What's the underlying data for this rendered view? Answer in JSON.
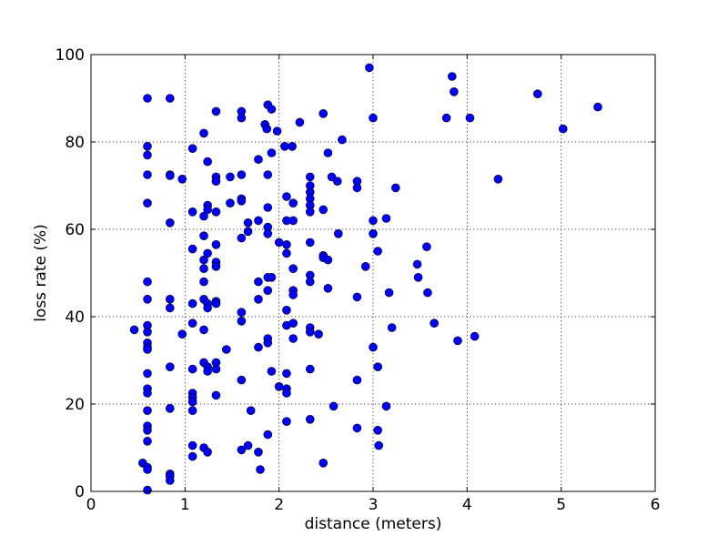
{
  "chart_data": {
    "type": "scatter",
    "title": "",
    "xlabel": "distance (meters)",
    "ylabel": "loss rate (%)",
    "xlim": [
      0,
      6
    ],
    "ylim": [
      0,
      100
    ],
    "xticks": [
      "0",
      "1",
      "2",
      "3",
      "4",
      "5",
      "6"
    ],
    "yticks": [
      "0",
      "20",
      "40",
      "60",
      "80",
      "100"
    ],
    "grid": true,
    "marker_color": "#0000ff",
    "marker_edge_color": "#000000",
    "points": [
      [
        0.46,
        37
      ],
      [
        0.55,
        6.5
      ],
      [
        0.6,
        90
      ],
      [
        0.6,
        79
      ],
      [
        0.6,
        77
      ],
      [
        0.6,
        72.5
      ],
      [
        0.6,
        66
      ],
      [
        0.6,
        48
      ],
      [
        0.6,
        44
      ],
      [
        0.6,
        38
      ],
      [
        0.6,
        36.5
      ],
      [
        0.6,
        34
      ],
      [
        0.6,
        33
      ],
      [
        0.6,
        32.5
      ],
      [
        0.6,
        27
      ],
      [
        0.6,
        23.5
      ],
      [
        0.6,
        22.5
      ],
      [
        0.6,
        18.5
      ],
      [
        0.6,
        15
      ],
      [
        0.6,
        14
      ],
      [
        0.6,
        11.5
      ],
      [
        0.6,
        5.5
      ],
      [
        0.6,
        5
      ],
      [
        0.6,
        0.3
      ],
      [
        0.84,
        90
      ],
      [
        0.84,
        72.5
      ],
      [
        0.84,
        72.3
      ],
      [
        0.84,
        61.5
      ],
      [
        0.84,
        44
      ],
      [
        0.84,
        42
      ],
      [
        0.84,
        28.5
      ],
      [
        0.84,
        19
      ],
      [
        0.84,
        4
      ],
      [
        0.84,
        3.5
      ],
      [
        0.84,
        2.5
      ],
      [
        0.97,
        71.5
      ],
      [
        0.97,
        36
      ],
      [
        1.08,
        78.5
      ],
      [
        1.08,
        64
      ],
      [
        1.08,
        55.5
      ],
      [
        1.08,
        43
      ],
      [
        1.08,
        38.5
      ],
      [
        1.08,
        28
      ],
      [
        1.08,
        22.5
      ],
      [
        1.08,
        21.5
      ],
      [
        1.08,
        20.5
      ],
      [
        1.08,
        18.5
      ],
      [
        1.08,
        10.5
      ],
      [
        1.08,
        8
      ],
      [
        1.2,
        82
      ],
      [
        1.2,
        63
      ],
      [
        1.2,
        58.5
      ],
      [
        1.2,
        53
      ],
      [
        1.2,
        51
      ],
      [
        1.2,
        48
      ],
      [
        1.2,
        44
      ],
      [
        1.2,
        37
      ],
      [
        1.2,
        29.5
      ],
      [
        1.2,
        10
      ],
      [
        1.24,
        75.5
      ],
      [
        1.24,
        65.5
      ],
      [
        1.24,
        64.5
      ],
      [
        1.24,
        54.5
      ],
      [
        1.24,
        43
      ],
      [
        1.24,
        42
      ],
      [
        1.24,
        28.5
      ],
      [
        1.24,
        27.5
      ],
      [
        1.24,
        9
      ],
      [
        1.33,
        87
      ],
      [
        1.33,
        72
      ],
      [
        1.33,
        71
      ],
      [
        1.33,
        64
      ],
      [
        1.33,
        56.5
      ],
      [
        1.33,
        52.5
      ],
      [
        1.33,
        51.5
      ],
      [
        1.33,
        43.5
      ],
      [
        1.33,
        43
      ],
      [
        1.33,
        29.5
      ],
      [
        1.33,
        28
      ],
      [
        1.33,
        22
      ],
      [
        1.44,
        32.5
      ],
      [
        1.48,
        66
      ],
      [
        1.48,
        72
      ],
      [
        1.6,
        87
      ],
      [
        1.6,
        85.5
      ],
      [
        1.6,
        72.5
      ],
      [
        1.6,
        67
      ],
      [
        1.6,
        66.5
      ],
      [
        1.6,
        58
      ],
      [
        1.6,
        41
      ],
      [
        1.6,
        39
      ],
      [
        1.6,
        25.5
      ],
      [
        1.6,
        9.5
      ],
      [
        1.67,
        61.5
      ],
      [
        1.67,
        59.5
      ],
      [
        1.67,
        10.5
      ],
      [
        1.7,
        18.5
      ],
      [
        1.78,
        76
      ],
      [
        1.78,
        62
      ],
      [
        1.78,
        48
      ],
      [
        1.78,
        44
      ],
      [
        1.78,
        33
      ],
      [
        1.78,
        9
      ],
      [
        1.8,
        5
      ],
      [
        1.85,
        84
      ],
      [
        1.87,
        83
      ],
      [
        1.88,
        88.5
      ],
      [
        1.88,
        72.5
      ],
      [
        1.88,
        65
      ],
      [
        1.88,
        60.5
      ],
      [
        1.88,
        59
      ],
      [
        1.88,
        49
      ],
      [
        1.88,
        46
      ],
      [
        1.88,
        35
      ],
      [
        1.88,
        34
      ],
      [
        1.88,
        13
      ],
      [
        1.92,
        87.5
      ],
      [
        1.92,
        77.5
      ],
      [
        1.92,
        49
      ],
      [
        1.92,
        27.5
      ],
      [
        1.98,
        82.5
      ],
      [
        2.0,
        57
      ],
      [
        2.0,
        24
      ],
      [
        2.06,
        79
      ],
      [
        2.08,
        67.5
      ],
      [
        2.08,
        62
      ],
      [
        2.08,
        56.5
      ],
      [
        2.08,
        54.5
      ],
      [
        2.08,
        41.5
      ],
      [
        2.08,
        38
      ],
      [
        2.08,
        27
      ],
      [
        2.08,
        23.5
      ],
      [
        2.08,
        22.5
      ],
      [
        2.08,
        16
      ],
      [
        2.14,
        79
      ],
      [
        2.15,
        66
      ],
      [
        2.15,
        62
      ],
      [
        2.15,
        51
      ],
      [
        2.15,
        46
      ],
      [
        2.15,
        45
      ],
      [
        2.15,
        38.5
      ],
      [
        2.15,
        35
      ],
      [
        2.22,
        84.5
      ],
      [
        2.33,
        72
      ],
      [
        2.33,
        70
      ],
      [
        2.33,
        68.5
      ],
      [
        2.33,
        67
      ],
      [
        2.33,
        65.5
      ],
      [
        2.33,
        64
      ],
      [
        2.33,
        57
      ],
      [
        2.33,
        49.5
      ],
      [
        2.33,
        48
      ],
      [
        2.33,
        37.5
      ],
      [
        2.33,
        36.5
      ],
      [
        2.33,
        28
      ],
      [
        2.33,
        16.5
      ],
      [
        2.42,
        36
      ],
      [
        2.47,
        86.5
      ],
      [
        2.47,
        64.5
      ],
      [
        2.47,
        54
      ],
      [
        2.47,
        53.5
      ],
      [
        2.47,
        6.5
      ],
      [
        2.52,
        77.5
      ],
      [
        2.52,
        53
      ],
      [
        2.52,
        46.5
      ],
      [
        2.56,
        72
      ],
      [
        2.58,
        19.5
      ],
      [
        2.63,
        59
      ],
      [
        2.62,
        71
      ],
      [
        2.67,
        80.5
      ],
      [
        2.83,
        71
      ],
      [
        2.83,
        69.5
      ],
      [
        2.83,
        44.5
      ],
      [
        2.83,
        25.5
      ],
      [
        2.83,
        14.5
      ],
      [
        2.92,
        51.5
      ],
      [
        2.96,
        97
      ],
      [
        3.0,
        85.5
      ],
      [
        3.0,
        62
      ],
      [
        3.0,
        59
      ],
      [
        3.0,
        33
      ],
      [
        3.05,
        55
      ],
      [
        3.05,
        28.5
      ],
      [
        3.05,
        14
      ],
      [
        3.06,
        10.5
      ],
      [
        3.14,
        62.5
      ],
      [
        3.14,
        19.5
      ],
      [
        3.17,
        45.5
      ],
      [
        3.2,
        37.5
      ],
      [
        3.24,
        69.5
      ],
      [
        3.47,
        52
      ],
      [
        3.48,
        49
      ],
      [
        3.57,
        56
      ],
      [
        3.58,
        45.5
      ],
      [
        3.65,
        38.5
      ],
      [
        3.78,
        85.5
      ],
      [
        3.84,
        95
      ],
      [
        3.86,
        91.5
      ],
      [
        3.9,
        34.5
      ],
      [
        4.03,
        85.5
      ],
      [
        4.08,
        35.5
      ],
      [
        4.33,
        71.5
      ],
      [
        4.75,
        91
      ],
      [
        5.02,
        83
      ],
      [
        5.39,
        88
      ]
    ]
  }
}
